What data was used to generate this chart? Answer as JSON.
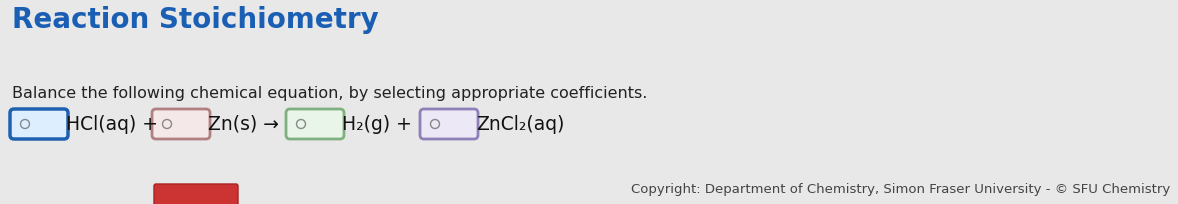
{
  "title": "Reaction Stoichiometry",
  "title_color": "#1a5fb4",
  "title_fontsize": 20,
  "subtitle": "Balance the following chemical equation, by selecting appropriate coefficients.",
  "subtitle_color": "#222222",
  "subtitle_fontsize": 11.5,
  "background_color": "#e8e8e8",
  "equation_fontsize": 13.5,
  "copyright_text": "Copyright: Department of Chemistry, Simon Fraser University - © SFU Chemistry",
  "copyright_fontsize": 9.5,
  "copyright_color": "#444444",
  "circle_color": "#888888",
  "equation_text_color": "#111111",
  "box1_face": "#ddeeff",
  "box1_edge": "#2060b0",
  "box2_face": "#f5e8e8",
  "box2_edge": "#b08080",
  "box3_face": "#e8f5e8",
  "box3_edge": "#80b080",
  "box4_face": "#ede8f5",
  "box4_edge": "#9080b8",
  "red_box_face": "#cc3333",
  "red_box_edge": "#aa2222"
}
